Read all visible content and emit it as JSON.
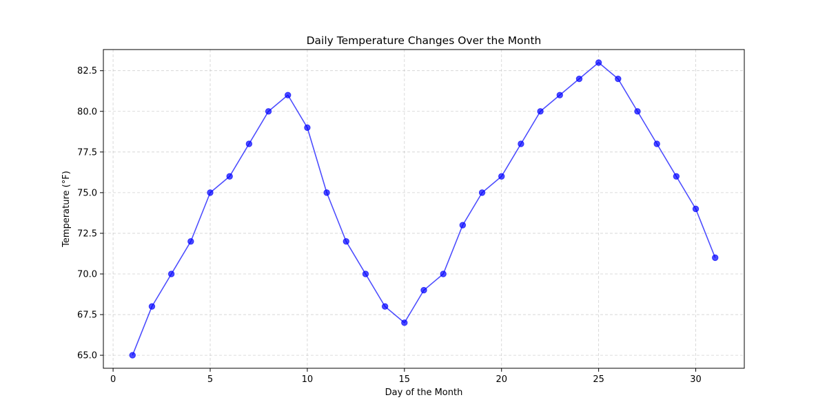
{
  "chart_data": {
    "type": "line",
    "title": "Daily Temperature Changes Over the Month",
    "xlabel": "Day of the Month",
    "ylabel": "Temperature (°F)",
    "xlim": [
      -0.5,
      32.5
    ],
    "ylim": [
      64.2,
      83.8
    ],
    "xticks": [
      0,
      5,
      10,
      15,
      20,
      25,
      30
    ],
    "xtick_labels": [
      "0",
      "5",
      "10",
      "15",
      "20",
      "25",
      "30"
    ],
    "yticks": [
      65.0,
      67.5,
      70.0,
      72.5,
      75.0,
      77.5,
      80.0,
      82.5
    ],
    "ytick_labels": [
      "65.0",
      "67.5",
      "70.0",
      "72.5",
      "75.0",
      "77.5",
      "80.0",
      "82.5"
    ],
    "grid": true,
    "marker": "circle",
    "series": [
      {
        "x": [
          1,
          2,
          3,
          4,
          5,
          6,
          7,
          8,
          9,
          10,
          11,
          12,
          13,
          14,
          15,
          16,
          17,
          18,
          19,
          20,
          21,
          22,
          23,
          24,
          25,
          26,
          27,
          28,
          29,
          30,
          31
        ],
        "values": [
          65,
          68,
          70,
          72,
          75,
          76,
          78,
          80,
          81,
          79,
          75,
          72,
          70,
          68,
          67,
          69,
          70,
          73,
          75,
          76,
          78,
          80,
          81,
          82,
          83,
          82,
          80,
          78,
          76,
          74,
          71
        ],
        "color": "#0000ff"
      }
    ]
  }
}
